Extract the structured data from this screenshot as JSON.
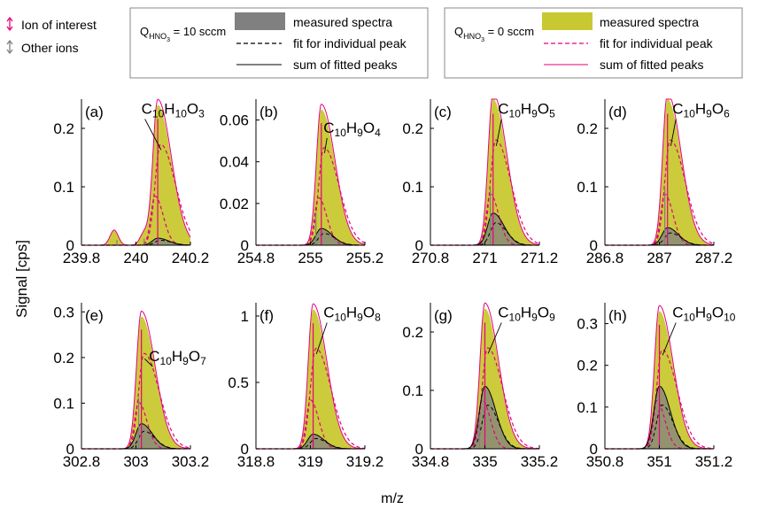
{
  "figure": {
    "ylabel": "Signal [cps]",
    "xlabel": "m/z"
  },
  "legend": {
    "markers": [
      {
        "label": "Ion of interest",
        "color": "#e6007e"
      },
      {
        "label": "Other ions",
        "color": "#808080"
      }
    ],
    "box1": {
      "title_q": "Q",
      "title_sub": "HNO",
      "title_sub2": "3",
      "title_rest": " = 10 sccm",
      "items": [
        "measured spectra",
        "fit for individual peak",
        "sum of fitted peaks"
      ]
    },
    "box2": {
      "title_q": "Q",
      "title_sub": "HNO",
      "title_sub2": "3",
      "title_rest": " = 0 sccm",
      "items": [
        "measured spectra",
        "fit for individual peak",
        "sum of fitted peaks"
      ]
    }
  },
  "colors": {
    "measured_10": "#808080",
    "measured_0": "#c8c832",
    "fit_0": "#e6007e",
    "ion_interest": "#e6007e",
    "other_ions": "#808080",
    "black": "#000000"
  },
  "chart_data": [
    {
      "type": "area",
      "panel": "(a)",
      "formula": "C10H10O3",
      "xlim": [
        239.8,
        240.2
      ],
      "xticks": [
        "239.8",
        "240",
        "240.2"
      ],
      "ylim": [
        0,
        0.25
      ],
      "yticks": [
        "0",
        "0.1",
        "0.2"
      ],
      "peak_center": 240.08,
      "peak_yellow": 0.24,
      "peak_gray": 0.012,
      "ion_sticks": [
        240.08
      ],
      "other_sticks": [
        240.03,
        239.93
      ],
      "secondary": [
        {
          "x": 239.92,
          "y": 0.025
        },
        {
          "x": 240.03,
          "y": 0.02
        }
      ]
    },
    {
      "type": "area",
      "panel": "(b)",
      "formula": "C10H9O4",
      "xlim": [
        254.8,
        255.2
      ],
      "xticks": [
        "254.8",
        "255",
        "255.2"
      ],
      "ylim": [
        0,
        0.07
      ],
      "yticks": [
        "0",
        "0.02",
        "0.04",
        "0.06"
      ],
      "peak_center": 255.04,
      "peak_yellow": 0.065,
      "peak_gray": 0.008,
      "ion_sticks": [
        255.04
      ],
      "other_sticks": [
        255.02
      ],
      "secondary": []
    },
    {
      "type": "area",
      "panel": "(c)",
      "formula": "C10H9O5",
      "xlim": [
        270.8,
        271.2
      ],
      "xticks": [
        "270.8",
        "271",
        "271.2"
      ],
      "ylim": [
        0,
        0.25
      ],
      "yticks": [
        "0",
        "0.1",
        "0.2"
      ],
      "peak_center": 271.03,
      "peak_yellow": 0.25,
      "peak_gray": 0.055,
      "ion_sticks": [
        271.03
      ],
      "other_sticks": [
        271.02
      ],
      "secondary": []
    },
    {
      "type": "area",
      "panel": "(d)",
      "formula": "C10H9O6",
      "xlim": [
        286.8,
        287.2
      ],
      "xticks": [
        "286.8",
        "287",
        "287.2"
      ],
      "ylim": [
        0,
        0.25
      ],
      "yticks": [
        "0",
        "0.1",
        "0.2"
      ],
      "peak_center": 287.03,
      "peak_yellow": 0.25,
      "peak_gray": 0.03,
      "ion_sticks": [
        287.03
      ],
      "other_sticks": [
        287.02
      ],
      "secondary": []
    },
    {
      "type": "area",
      "panel": "(e)",
      "formula": "C10H9O7",
      "xlim": [
        302.8,
        303.2
      ],
      "xticks": [
        "302.8",
        "303",
        "303.2"
      ],
      "ylim": [
        0,
        0.32
      ],
      "yticks": [
        "0",
        "0.1",
        "0.2",
        "0.3"
      ],
      "peak_center": 303.02,
      "peak_yellow": 0.29,
      "peak_gray": 0.055,
      "ion_sticks": [
        303.02
      ],
      "other_sticks": [
        303.01
      ],
      "secondary": []
    },
    {
      "type": "area",
      "panel": "(f)",
      "formula": "C10H9O8",
      "xlim": [
        318.8,
        319.2
      ],
      "xticks": [
        "318.8",
        "319",
        "319.2"
      ],
      "ylim": [
        0,
        1.1
      ],
      "yticks": [
        "0",
        "0.5",
        "1"
      ],
      "peak_center": 319.01,
      "peak_yellow": 1.05,
      "peak_gray": 0.11,
      "ion_sticks": [
        319.01
      ],
      "other_sticks": [],
      "secondary": []
    },
    {
      "type": "area",
      "panel": "(g)",
      "formula": "C10H9O9",
      "xlim": [
        334.8,
        335.2
      ],
      "xticks": [
        "334.8",
        "335",
        "335.2"
      ],
      "ylim": [
        0,
        0.25
      ],
      "yticks": [
        "0",
        "0.1",
        "0.2"
      ],
      "peak_center": 335.0,
      "peak_yellow": 0.24,
      "peak_gray": 0.107,
      "ion_sticks": [
        335.0
      ],
      "other_sticks": [
        334.98
      ],
      "secondary": []
    },
    {
      "type": "area",
      "panel": "(h)",
      "formula": "C10H9O10",
      "xlim": [
        350.8,
        351.2
      ],
      "xticks": [
        "350.8",
        "351",
        "351.2"
      ],
      "ylim": [
        0,
        0.35
      ],
      "yticks": [
        "0",
        "0.1",
        "0.2",
        "0.3"
      ],
      "peak_center": 351.0,
      "peak_yellow": 0.33,
      "peak_gray": 0.15,
      "ion_sticks": [
        351.0
      ],
      "other_sticks": [],
      "secondary": []
    }
  ]
}
